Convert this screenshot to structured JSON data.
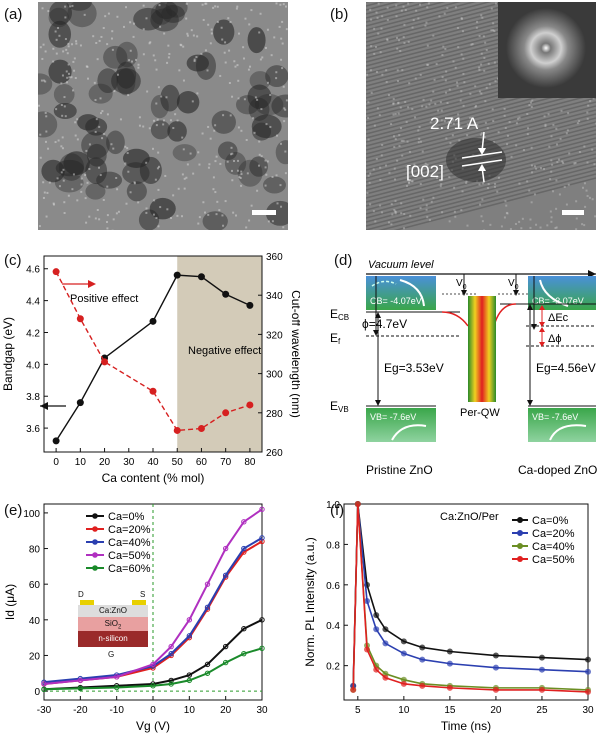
{
  "panels": {
    "a": {
      "label": "(a)"
    },
    "b": {
      "label": "(b)",
      "lattice": "2.71 A",
      "plane": "[002]"
    },
    "c": {
      "label": "(c)"
    },
    "d": {
      "label": "(d)"
    },
    "e": {
      "label": "(e)"
    },
    "f": {
      "label": "(f)"
    }
  },
  "band_diagram": {
    "vacuum_level": "Vacuum level",
    "v0_left": "V",
    "v0_sub": "0",
    "ecb": "E",
    "ecb_sub": "CB",
    "ef": "E",
    "ef_sub": "f",
    "evb": "E",
    "evb_sub": "VB",
    "phi": "ϕ=4.7eV",
    "cb_left": "CB= -4.07eV",
    "cb_right": "CB= -3.07eV",
    "vb_left": "VB= -7.6eV",
    "vb_right": "VB= -7.6eV",
    "eg_left": "Eg=3.53eV",
    "eg_right": "Eg=4.56eV",
    "delta_ec": "ΔEc",
    "delta_phi": "Δϕ",
    "qw": "Per-QW",
    "pristine": "Pristine ZnO",
    "doped": "Ca-doped ZnO",
    "colors": {
      "green": "#3aa64a",
      "blue": "#4a90d9"
    }
  },
  "device": {
    "d": "D",
    "s": "S",
    "layer1": "Ca:ZnO",
    "layer2": "SiO",
    "layer2_sub": "2",
    "layer3": "n-silicon",
    "g": "G"
  },
  "chart_data": [
    {
      "id": "c",
      "type": "line",
      "xlabel": "Ca content (% mol)",
      "ylabel": "Bandgap (eV)",
      "y2label": "Cut-off wavelength (nm)",
      "xlim": [
        -5,
        85
      ],
      "ylim": [
        3.45,
        4.68
      ],
      "y2lim": [
        260,
        360
      ],
      "xticks": [
        0,
        10,
        20,
        30,
        40,
        50,
        60,
        70,
        80
      ],
      "yticks": [
        3.6,
        3.8,
        4.0,
        4.2,
        4.4,
        4.6
      ],
      "y2ticks": [
        260,
        280,
        300,
        320,
        340,
        360
      ],
      "annotations": [
        "Positive effect",
        "Negative effect"
      ],
      "shaded_region_x": [
        50,
        85
      ],
      "series": [
        {
          "name": "Bandgap",
          "axis": "left",
          "color": "#111111",
          "style": "solid",
          "x": [
            0,
            10,
            20,
            40,
            50,
            60,
            70,
            80
          ],
          "y": [
            3.52,
            3.76,
            4.04,
            4.27,
            4.56,
            4.55,
            4.44,
            4.37
          ]
        },
        {
          "name": "Cut-off wavelength",
          "axis": "right",
          "color": "#d62020",
          "style": "dashed",
          "x": [
            0,
            10,
            20,
            40,
            50,
            60,
            70,
            80
          ],
          "y": [
            352,
            328,
            306,
            291,
            271,
            272,
            280,
            284
          ]
        }
      ]
    },
    {
      "id": "e",
      "type": "line",
      "xlabel": "Vg (V)",
      "ylabel": "Id (μA)",
      "xlim": [
        -30,
        30
      ],
      "ylim": [
        -5,
        105
      ],
      "xticks": [
        -30,
        -20,
        -10,
        0,
        10,
        20,
        30
      ],
      "yticks": [
        0,
        20,
        40,
        60,
        80,
        100
      ],
      "legend": "top-right",
      "series": [
        {
          "name": "Ca=0%",
          "color": "#111111",
          "x": [
            -30,
            -20,
            -10,
            0,
            5,
            10,
            15,
            20,
            25,
            30
          ],
          "y": [
            1,
            2,
            3,
            4,
            6,
            9,
            15,
            25,
            35,
            40
          ]
        },
        {
          "name": "Ca=20%",
          "color": "#e02020",
          "x": [
            -30,
            -20,
            -10,
            0,
            5,
            10,
            15,
            20,
            25,
            30
          ],
          "y": [
            4,
            6,
            8,
            13,
            20,
            30,
            46,
            64,
            78,
            84
          ]
        },
        {
          "name": "Ca=40%",
          "color": "#2b3fb0",
          "x": [
            -30,
            -20,
            -10,
            0,
            5,
            10,
            15,
            20,
            25,
            30
          ],
          "y": [
            5,
            7,
            9,
            14,
            21,
            31,
            47,
            65,
            80,
            86
          ]
        },
        {
          "name": "Ca=50%",
          "color": "#b030c0",
          "x": [
            -30,
            -20,
            -10,
            0,
            5,
            10,
            15,
            20,
            25,
            30
          ],
          "y": [
            4,
            6,
            8,
            15,
            25,
            40,
            60,
            80,
            95,
            102
          ]
        },
        {
          "name": "Ca=60%",
          "color": "#1a8a2a",
          "x": [
            -30,
            -20,
            -10,
            0,
            5,
            10,
            15,
            20,
            25,
            30
          ],
          "y": [
            1,
            1.5,
            2,
            3,
            4,
            6,
            10,
            16,
            21,
            24
          ]
        }
      ]
    },
    {
      "id": "f",
      "type": "line",
      "xlabel": "Time (ns)",
      "ylabel": "Norm. PL Intensity (a.u.)",
      "xlim": [
        3.5,
        30
      ],
      "ylim": [
        0.03,
        1.0
      ],
      "xticks": [
        5,
        10,
        15,
        20,
        25,
        30
      ],
      "yticks": [
        0.2,
        0.4,
        0.6,
        0.8,
        1.0
      ],
      "legend_title": "Ca:ZnO/Per",
      "legend": "top-right",
      "series": [
        {
          "name": "Ca=0%",
          "color": "#111111",
          "x": [
            4.5,
            5,
            6,
            7,
            8,
            10,
            12,
            15,
            20,
            25,
            30
          ],
          "y": [
            0.1,
            1.0,
            0.6,
            0.45,
            0.38,
            0.32,
            0.29,
            0.27,
            0.25,
            0.24,
            0.23
          ]
        },
        {
          "name": "Ca=20%",
          "color": "#2b3fb0",
          "x": [
            4.5,
            5,
            6,
            7,
            8,
            10,
            12,
            15,
            20,
            25,
            30
          ],
          "y": [
            0.1,
            1.0,
            0.52,
            0.38,
            0.31,
            0.26,
            0.23,
            0.21,
            0.19,
            0.18,
            0.17
          ]
        },
        {
          "name": "Ca=40%",
          "color": "#6b8e23",
          "x": [
            4.5,
            5,
            6,
            7,
            8,
            10,
            12,
            15,
            20,
            25,
            30
          ],
          "y": [
            0.08,
            1.0,
            0.3,
            0.2,
            0.16,
            0.13,
            0.11,
            0.1,
            0.09,
            0.09,
            0.08
          ]
        },
        {
          "name": "Ca=50%",
          "color": "#e02020",
          "x": [
            4.5,
            5,
            6,
            7,
            8,
            10,
            12,
            15,
            20,
            25,
            30
          ],
          "y": [
            0.08,
            1.0,
            0.28,
            0.18,
            0.14,
            0.11,
            0.1,
            0.09,
            0.08,
            0.08,
            0.07
          ]
        }
      ]
    }
  ]
}
